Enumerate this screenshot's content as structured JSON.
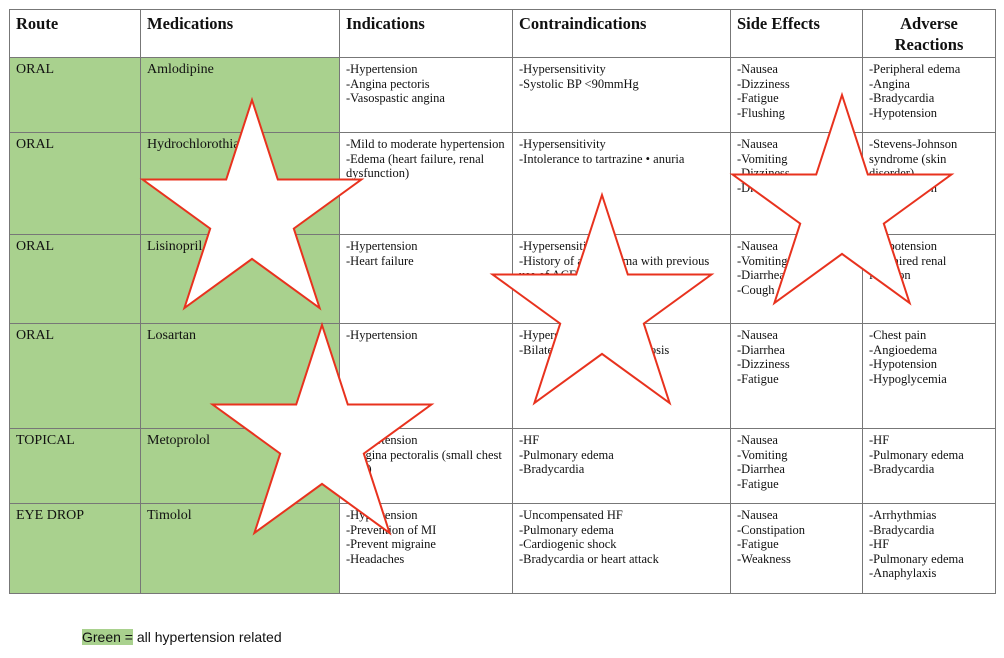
{
  "headers": [
    "Route",
    "Medications",
    "Indications",
    "Contraindications",
    "Side Effects",
    "Adverse Reactions"
  ],
  "rows": [
    {
      "route": "ORAL",
      "medication": "Amlodipine",
      "indications": [
        "-Hypertension",
        "-Angina pectoris",
        "-Vasospastic angina"
      ],
      "contraindications": [
        "-Hypersensitivity",
        "-Systolic BP <90mmHg"
      ],
      "side_effects": [
        "-Nausea",
        "-Dizziness",
        "-Fatigue",
        "-Flushing"
      ],
      "adverse_reactions": [
        "-Peripheral edema",
        "-Angina",
        "-Bradycardia",
        "-Hypotension"
      ]
    },
    {
      "route": "ORAL",
      "medication": "Hydrochlorothiazide",
      "indications": [
        "-Mild to moderate hypertension",
        "-Edema (heart failure, renal dysfunction)"
      ],
      "contraindications": [
        "-Hypersensitivity",
        "-Intolerance to tartrazine • anuria"
      ],
      "side_effects": [
        "-Nausea",
        "-Vomiting",
        "-Dizziness",
        "-Drowsiness"
      ],
      "adverse_reactions": [
        "-Stevens-Johnson syndrome (skin disorder)",
        "-Hypotension"
      ]
    },
    {
      "route": "ORAL",
      "medication": "Lisinopril",
      "indications": [
        "-Hypertension",
        "-Heart failure"
      ],
      "contraindications": [
        "-Hypersensitivity",
        "-History of angioedema with previous use of ACE inhibitors"
      ],
      "side_effects": [
        "-Nausea",
        "-Vomiting",
        "-Diarrhea",
        "-Cough"
      ],
      "adverse_reactions": [
        "-Hypotension",
        "-Impaired renal function"
      ]
    },
    {
      "route": "ORAL",
      "medication": "Losartan",
      "indications": [
        "-Hypertension"
      ],
      "contraindications": [
        "",
        "-Hypersensitivity",
        "-Bilateral renal artery stenosis"
      ],
      "side_effects": [
        "",
        "-Nausea",
        "-Diarrhea",
        "-Dizziness",
        "-Fatigue"
      ],
      "adverse_reactions": [
        "-Chest pain",
        "-Angioedema",
        "-Hypotension",
        "-Hypoglycemia"
      ]
    },
    {
      "route": "TOPICAL",
      "medication": "Metoprolol",
      "indications": [
        "-Hypertension",
        "-Angina pectoralis (small chest pain)"
      ],
      "contraindications": [
        "-HF",
        "-Pulmonary edema",
        "-Bradycardia"
      ],
      "side_effects": [
        "-Nausea",
        "-Vomiting",
        "-Diarrhea",
        "-Fatigue"
      ],
      "adverse_reactions": [
        "-HF",
        "-Pulmonary edema",
        "-Bradycardia"
      ]
    },
    {
      "route": "EYE DROP",
      "medication": "Timolol",
      "indications": [
        "-Hypertension",
        "-Prevention of MI",
        "-Prevent migraine",
        "-Headaches"
      ],
      "contraindications": [
        "-Uncompensated HF",
        "-Pulmonary edema",
        "-Cardiogenic shock",
        "-Bradycardia or heart attack"
      ],
      "side_effects": [
        "-Nausea",
        "-Constipation",
        "-Fatigue",
        "-Weakness"
      ],
      "adverse_reactions": [
        "-Arrhythmias",
        "-Bradycardia",
        "-HF",
        "-Pulmonary edema",
        "-Anaphylaxis"
      ]
    }
  ],
  "legend": {
    "highlight": "Green =",
    "text": " all hypertension related"
  },
  "colors": {
    "green": "#a9d18e",
    "star_stroke": "#e8321e",
    "border": "#777777"
  }
}
